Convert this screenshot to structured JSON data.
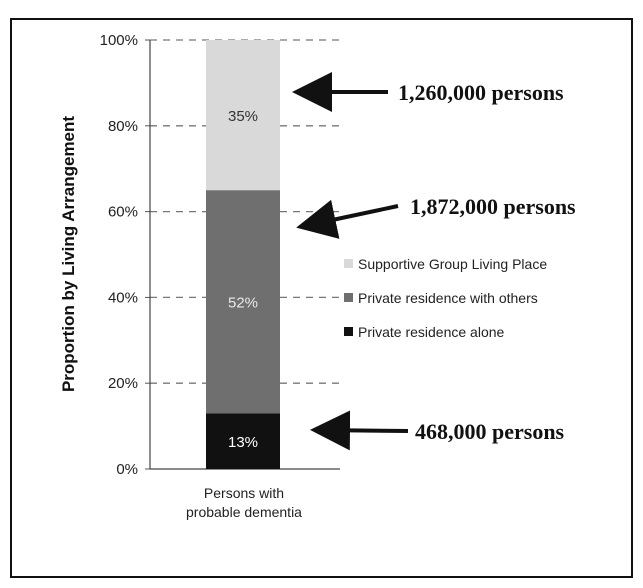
{
  "chart_data": {
    "type": "bar",
    "stacked": true,
    "categories": [
      "Persons with probable dementia"
    ],
    "category_lines": [
      "Persons with",
      "probable dementia"
    ],
    "ylabel": "Proportion by Living Arrangement",
    "ylim": [
      0,
      100
    ],
    "ytick_labels": [
      "0%",
      "20%",
      "40%",
      "60%",
      "80%",
      "100%"
    ],
    "yticks": [
      0,
      20,
      40,
      60,
      80,
      100
    ],
    "grid": "dashed horizontal",
    "legend_placement": "right",
    "series": [
      {
        "name": "Private residence alone",
        "values": [
          13
        ],
        "label": "13%",
        "color": "#111111",
        "label_color": "#ffffff"
      },
      {
        "name": "Private residence with others",
        "values": [
          52
        ],
        "label": "52%",
        "color": "#6f6f6f",
        "label_color": "#e8e8e8"
      },
      {
        "name": "Supportive Group Living Place",
        "values": [
          35
        ],
        "label": "35%",
        "color": "#d9d9d9",
        "label_color": "#333333"
      }
    ],
    "legend_order": [
      "Supportive Group Living Place",
      "Private residence with others",
      "Private residence alone"
    ],
    "annotations": [
      {
        "text": "1,260,000 persons",
        "series": "Supportive Group Living Place"
      },
      {
        "text": "1,872,000 persons",
        "series": "Private residence with others"
      },
      {
        "text": "468,000 persons",
        "series": "Private residence alone"
      }
    ]
  }
}
